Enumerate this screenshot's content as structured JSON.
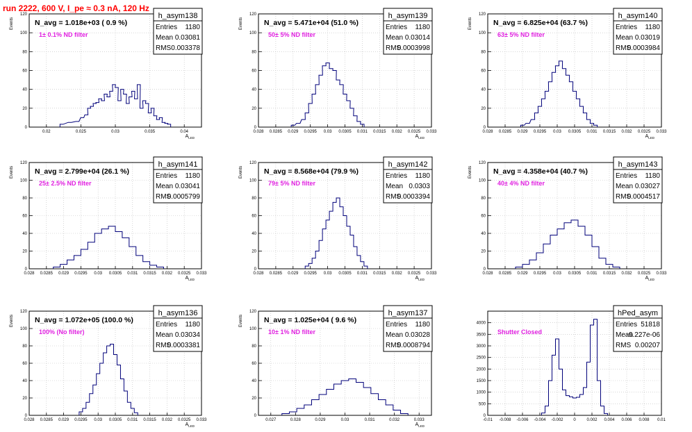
{
  "header": {
    "run_title": "run 2222,   600 V, I_pe ≈ 0.3 nA, 120 Hz"
  },
  "colors": {
    "histogram": "#00007a",
    "filter_label": "#e020e0",
    "title": "#ff0000",
    "grid": "#bbbbbb"
  },
  "chart_data": [
    {
      "type": "histogram",
      "name": "h_asym138",
      "stats": {
        "entries": "1180",
        "mean": "0.03081",
        "rms": "0.003378"
      },
      "stats_labels": [
        "Entries",
        "Mean",
        "RMS"
      ],
      "annotation": "N_avg = 1.018e+03 ( 0.9 %)",
      "filter_label": "1± 0.1% ND filter",
      "ylabel": "Events",
      "xlabel": "A_LED",
      "xlim": [
        0.0175,
        0.0425
      ],
      "ylim": [
        0,
        120
      ],
      "xticks": [
        "0.02",
        "0.025",
        "0.03",
        "0.035",
        "0.04"
      ],
      "xtick_values": [
        0.02,
        0.025,
        0.03,
        0.035,
        0.04
      ],
      "yticks": [
        0,
        20,
        40,
        60,
        80,
        100,
        120
      ],
      "bins": {
        "x": [
          0.0222,
          0.0234,
          0.0245,
          0.0252,
          0.0258,
          0.0262,
          0.0266,
          0.027,
          0.0274,
          0.0278,
          0.0282,
          0.0286,
          0.029,
          0.0294,
          0.0298,
          0.0302,
          0.0306,
          0.031,
          0.0314,
          0.0318,
          0.0322,
          0.0326,
          0.033,
          0.0334,
          0.0338,
          0.0342,
          0.0346,
          0.035,
          0.0354,
          0.0358,
          0.0362,
          0.0366,
          0.037,
          0.0374,
          0.0378
        ],
        "values": [
          3,
          5,
          6,
          10,
          13,
          20,
          22,
          25,
          26,
          30,
          28,
          35,
          32,
          38,
          45,
          42,
          28,
          40,
          35,
          25,
          32,
          38,
          30,
          45,
          20,
          28,
          25,
          15,
          20,
          12,
          8,
          10,
          5,
          4,
          3
        ]
      }
    },
    {
      "type": "histogram",
      "name": "h_asym139",
      "stats": {
        "entries": "1180",
        "mean": "0.03014",
        "rms": "0.0003998"
      },
      "stats_labels": [
        "Entries",
        "Mean",
        "RMS"
      ],
      "annotation": "N_avg = 5.471e+04 (51.0 %)",
      "filter_label": "50± 5% ND filter",
      "ylabel": "Events",
      "xlabel": "A_LED",
      "xlim": [
        0.028,
        0.033
      ],
      "ylim": [
        0,
        120
      ],
      "xticks": [
        "0.028",
        "0.0285",
        "0.029",
        "0.0295",
        "0.03",
        "0.0305",
        "0.031",
        "0.0315",
        "0.032",
        "0.0325",
        "0.033"
      ],
      "xtick_values": [
        0.028,
        0.0285,
        0.029,
        0.0295,
        0.03,
        0.0305,
        0.031,
        0.0315,
        0.032,
        0.0325,
        0.033
      ],
      "yticks": [
        0,
        20,
        40,
        60,
        80,
        100,
        120
      ],
      "bins": {
        "x": [
          0.029,
          0.02915,
          0.0293,
          0.0294,
          0.0295,
          0.0296,
          0.0297,
          0.0298,
          0.0299,
          0.03,
          0.0301,
          0.0302,
          0.0303,
          0.0304,
          0.0305,
          0.0306,
          0.0307,
          0.0308,
          0.0309,
          0.031
        ],
        "values": [
          2,
          4,
          8,
          15,
          25,
          35,
          45,
          55,
          65,
          68,
          62,
          60,
          50,
          45,
          35,
          28,
          20,
          12,
          6,
          3
        ]
      }
    },
    {
      "type": "histogram",
      "name": "h_asym140",
      "stats": {
        "entries": "1180",
        "mean": "0.03019",
        "rms": "0.0003984"
      },
      "stats_labels": [
        "Entries",
        "Mean",
        "RMS"
      ],
      "annotation": "N_avg = 6.825e+04 (63.7 %)",
      "filter_label": "63± 5% ND filter",
      "ylabel": "Events",
      "xlabel": "A_LED",
      "xlim": [
        0.028,
        0.033
      ],
      "ylim": [
        0,
        120
      ],
      "xticks": [
        "0.028",
        "0.0285",
        "0.029",
        "0.0295",
        "0.03",
        "0.0305",
        "0.031",
        "0.0315",
        "0.032",
        "0.0325",
        "0.033"
      ],
      "xtick_values": [
        0.028,
        0.0285,
        0.029,
        0.0295,
        0.03,
        0.0305,
        0.031,
        0.0315,
        0.032,
        0.0325,
        0.033
      ],
      "yticks": [
        0,
        20,
        40,
        60,
        80,
        100,
        120
      ],
      "bins": {
        "x": [
          0.029,
          0.02915,
          0.0293,
          0.0294,
          0.0295,
          0.0296,
          0.0297,
          0.0298,
          0.0299,
          0.03,
          0.0301,
          0.0302,
          0.0303,
          0.0304,
          0.0305,
          0.0306,
          0.0307,
          0.0308,
          0.0309,
          0.031,
          0.0311
        ],
        "values": [
          2,
          4,
          8,
          15,
          22,
          30,
          38,
          48,
          58,
          65,
          70,
          62,
          55,
          48,
          38,
          30,
          22,
          15,
          8,
          4,
          2
        ]
      }
    },
    {
      "type": "histogram",
      "name": "h_asym141",
      "stats": {
        "entries": "1180",
        "mean": "0.03041",
        "rms": "0.0005799"
      },
      "stats_labels": [
        "Entries",
        "Mean",
        "RMS"
      ],
      "annotation": "N_avg = 2.799e+04 (26.1 %)",
      "filter_label": "25± 2.5% ND filter",
      "ylabel": "Events",
      "xlabel": "A_LED",
      "xlim": [
        0.028,
        0.033
      ],
      "ylim": [
        0,
        120
      ],
      "xticks": [
        "0.028",
        "0.0285",
        "0.029",
        "0.0295",
        "0.03",
        "0.0305",
        "0.031",
        "0.0315",
        "0.032",
        "0.0325",
        "0.033"
      ],
      "xtick_values": [
        0.028,
        0.0285,
        0.029,
        0.0295,
        0.03,
        0.0305,
        0.031,
        0.0315,
        0.032,
        0.0325,
        0.033
      ],
      "yticks": [
        0,
        20,
        40,
        60,
        80,
        100,
        120
      ],
      "bins": {
        "x": [
          0.0288,
          0.029,
          0.0292,
          0.0294,
          0.0296,
          0.0298,
          0.03,
          0.0302,
          0.0304,
          0.0306,
          0.0308,
          0.031,
          0.0312,
          0.0314,
          0.0316,
          0.0318
        ],
        "values": [
          2,
          5,
          10,
          15,
          22,
          30,
          40,
          45,
          48,
          42,
          35,
          25,
          15,
          8,
          4,
          2
        ]
      }
    },
    {
      "type": "histogram",
      "name": "h_asym142",
      "stats": {
        "entries": "1180",
        "mean": "0.0303",
        "rms": "0.0003394"
      },
      "stats_labels": [
        "Entries",
        "Mean",
        "RMS"
      ],
      "annotation": "N_avg = 8.568e+04 (79.9 %)",
      "filter_label": "79± 5% ND filter",
      "ylabel": "Events",
      "xlabel": "A_LED",
      "xlim": [
        0.028,
        0.033
      ],
      "ylim": [
        0,
        120
      ],
      "xticks": [
        "0.028",
        "0.0285",
        "0.029",
        "0.0295",
        "0.03",
        "0.0305",
        "0.031",
        "0.0315",
        "0.032",
        "0.0325",
        "0.033"
      ],
      "xtick_values": [
        0.028,
        0.0285,
        0.029,
        0.0295,
        0.03,
        0.0305,
        0.031,
        0.0315,
        0.032,
        0.0325,
        0.033
      ],
      "yticks": [
        0,
        20,
        40,
        60,
        80,
        100,
        120
      ],
      "bins": {
        "x": [
          0.0294,
          0.0295,
          0.0296,
          0.0297,
          0.0298,
          0.0299,
          0.03,
          0.0301,
          0.0302,
          0.0303,
          0.0304,
          0.0305,
          0.0306,
          0.0307,
          0.0308,
          0.0309,
          0.031,
          0.0311
        ],
        "values": [
          3,
          6,
          12,
          20,
          32,
          45,
          55,
          65,
          75,
          80,
          70,
          60,
          48,
          38,
          25,
          15,
          8,
          3
        ]
      }
    },
    {
      "type": "histogram",
      "name": "h_asym143",
      "stats": {
        "entries": "1180",
        "mean": "0.03027",
        "rms": "0.0004517"
      },
      "stats_labels": [
        "Entries",
        "Mean",
        "RMS"
      ],
      "annotation": "N_avg = 4.358e+04 (40.7 %)",
      "filter_label": "40± 4% ND filter",
      "ylabel": "Events",
      "xlabel": "A_LED",
      "xlim": [
        0.028,
        0.033
      ],
      "ylim": [
        0,
        120
      ],
      "xticks": [
        "0.028",
        "0.0285",
        "0.029",
        "0.0295",
        "0.03",
        "0.0305",
        "0.031",
        "0.0315",
        "0.032",
        "0.0325",
        "0.033"
      ],
      "xtick_values": [
        0.028,
        0.0285,
        0.029,
        0.0295,
        0.03,
        0.0305,
        0.031,
        0.0315,
        0.032,
        0.0325,
        0.033
      ],
      "yticks": [
        0,
        20,
        40,
        60,
        80,
        100,
        120
      ],
      "bins": {
        "x": [
          0.0289,
          0.0291,
          0.0293,
          0.0295,
          0.0297,
          0.0299,
          0.0301,
          0.0303,
          0.0305,
          0.0307,
          0.0309,
          0.0311,
          0.0313,
          0.0315,
          0.0317
        ],
        "values": [
          2,
          5,
          10,
          18,
          28,
          38,
          45,
          52,
          55,
          48,
          38,
          25,
          12,
          5,
          2
        ]
      }
    },
    {
      "type": "histogram",
      "name": "h_asym136",
      "stats": {
        "entries": "1180",
        "mean": "0.03034",
        "rms": "0.0003381"
      },
      "stats_labels": [
        "Entries",
        "Mean",
        "RMS"
      ],
      "annotation": "N_avg = 1.072e+05 (100.0 %)",
      "filter_label": "100% (No filter)",
      "ylabel": "Events",
      "xlabel": "A_LED",
      "xlim": [
        0.028,
        0.033
      ],
      "ylim": [
        0,
        120
      ],
      "xticks": [
        "0.028",
        "0.0285",
        "0.029",
        "0.0295",
        "0.03",
        "0.0305",
        "0.031",
        "0.0315",
        "0.032",
        "0.0325",
        "0.033"
      ],
      "xtick_values": [
        0.028,
        0.0285,
        0.029,
        0.0295,
        0.03,
        0.0305,
        0.031,
        0.0315,
        0.032,
        0.0325,
        0.033
      ],
      "yticks": [
        0,
        20,
        40,
        60,
        80,
        100,
        120
      ],
      "bins": {
        "x": [
          0.0295,
          0.0296,
          0.0297,
          0.0298,
          0.0299,
          0.03,
          0.0301,
          0.0302,
          0.0303,
          0.0304,
          0.0305,
          0.0306,
          0.0307,
          0.0308,
          0.0309,
          0.031,
          0.0311
        ],
        "values": [
          4,
          8,
          15,
          25,
          35,
          48,
          60,
          72,
          80,
          82,
          70,
          58,
          42,
          28,
          15,
          8,
          3
        ]
      }
    },
    {
      "type": "histogram",
      "name": "h_asym137",
      "stats": {
        "entries": "1180",
        "mean": "0.03028",
        "rms": "0.0008794"
      },
      "stats_labels": [
        "Entries",
        "Mean",
        "RMS"
      ],
      "annotation": "N_avg = 1.025e+04 ( 9.6 %)",
      "filter_label": "10± 1% ND filter",
      "ylabel": "Events",
      "xlabel": "A_LED",
      "xlim": [
        0.0265,
        0.0335
      ],
      "ylim": [
        0,
        120
      ],
      "xticks": [
        "0.027",
        "0.028",
        "0.029",
        "0.03",
        "0.031",
        "0.032",
        "0.033"
      ],
      "xtick_values": [
        0.027,
        0.028,
        0.029,
        0.03,
        0.031,
        0.032,
        0.033
      ],
      "yticks": [
        0,
        20,
        40,
        60,
        80,
        100,
        120
      ],
      "bins": {
        "x": [
          0.0276,
          0.0279,
          0.0282,
          0.0285,
          0.0288,
          0.0291,
          0.0294,
          0.0297,
          0.03,
          0.0303,
          0.0306,
          0.0309,
          0.0312,
          0.0315,
          0.0318,
          0.0321,
          0.0324
        ],
        "values": [
          2,
          4,
          8,
          12,
          18,
          24,
          30,
          36,
          40,
          42,
          38,
          32,
          25,
          18,
          12,
          6,
          2
        ]
      }
    },
    {
      "type": "histogram",
      "name": "hPed_asym",
      "stats": {
        "entries": "51818",
        "mean": "-9.227e-06",
        "rms": "0.00207"
      },
      "stats_labels": [
        "Entries",
        "Mean",
        "RMS"
      ],
      "annotation": "",
      "filter_label": "Shutter Closed",
      "ylabel": "",
      "xlabel": "",
      "xlim": [
        -0.01,
        0.01
      ],
      "ylim": [
        0,
        4500
      ],
      "xticks": [
        "-0.01",
        "-0.008",
        "-0.006",
        "-0.004",
        "-0.002",
        "0",
        "0.002",
        "0.004",
        "0.006",
        "0.008",
        "0.01"
      ],
      "xtick_values": [
        -0.01,
        -0.008,
        -0.006,
        -0.004,
        -0.002,
        0,
        0.002,
        0.004,
        0.006,
        0.008,
        0.01
      ],
      "yticks": [
        0,
        500,
        1000,
        1500,
        2000,
        2500,
        3000,
        3500,
        4000
      ],
      "bins": {
        "x": [
          -0.0036,
          -0.0032,
          -0.0028,
          -0.0024,
          -0.002,
          -0.0016,
          -0.0012,
          -0.0008,
          -0.0004,
          0.0,
          0.0004,
          0.0008,
          0.0012,
          0.0016,
          0.002,
          0.0024,
          0.0028,
          0.0032,
          0.0036
        ],
        "values": [
          100,
          400,
          1500,
          2600,
          3300,
          2000,
          1100,
          850,
          800,
          750,
          780,
          900,
          1200,
          2300,
          3900,
          4150,
          1500,
          400,
          80
        ]
      }
    }
  ]
}
